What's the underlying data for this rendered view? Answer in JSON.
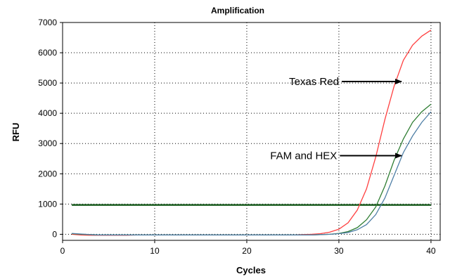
{
  "chart_data": {
    "type": "line",
    "title": "Amplification",
    "xlabel": "Cycles",
    "ylabel": "RFU",
    "xlim": [
      0,
      41
    ],
    "ylim": [
      -200,
      7000
    ],
    "xticks": [
      0,
      10,
      20,
      30,
      40
    ],
    "yticks": [
      0,
      1000,
      2000,
      3000,
      4000,
      5000,
      6000,
      7000
    ],
    "grid": true,
    "colors": {
      "red": "#ff4040",
      "green": "#2e7d32",
      "blue": "#4f7fa6",
      "threshold": "#1b5e20"
    },
    "threshold": 970,
    "series": [
      {
        "color": "red",
        "x": [
          1,
          2,
          3,
          4,
          5,
          6,
          7,
          8,
          9,
          10,
          11,
          12,
          13,
          14,
          15,
          16,
          17,
          18,
          19,
          20,
          21,
          22,
          23,
          24,
          25,
          26,
          27,
          28,
          29,
          30,
          31,
          32,
          33,
          34,
          35,
          36,
          37,
          38,
          39,
          40
        ],
        "values": [
          0,
          -20,
          -30,
          -30,
          -30,
          -30,
          -30,
          -20,
          -20,
          -20,
          -20,
          -20,
          -20,
          -20,
          -20,
          -20,
          -20,
          -20,
          -20,
          -20,
          -20,
          -20,
          -20,
          -20,
          -20,
          -10,
          0,
          20,
          70,
          170,
          380,
          800,
          1500,
          2550,
          3800,
          4900,
          5750,
          6250,
          6550,
          6750
        ]
      },
      {
        "color": "green",
        "x": [
          1,
          2,
          3,
          4,
          5,
          6,
          7,
          8,
          9,
          10,
          11,
          12,
          13,
          14,
          15,
          16,
          17,
          18,
          19,
          20,
          21,
          22,
          23,
          24,
          25,
          26,
          27,
          28,
          29,
          30,
          31,
          32,
          33,
          34,
          35,
          36,
          37,
          38,
          39,
          40
        ],
        "values": [
          20,
          0,
          -10,
          -20,
          -20,
          -20,
          -20,
          -20,
          -20,
          -20,
          -20,
          -20,
          -20,
          -20,
          -20,
          -20,
          -20,
          -20,
          -20,
          -20,
          -20,
          -20,
          -20,
          -20,
          -20,
          -20,
          -20,
          -10,
          0,
          30,
          90,
          220,
          480,
          900,
          1600,
          2450,
          3150,
          3700,
          4050,
          4300
        ]
      },
      {
        "color": "blue",
        "x": [
          1,
          2,
          3,
          4,
          5,
          6,
          7,
          8,
          9,
          10,
          11,
          12,
          13,
          14,
          15,
          16,
          17,
          18,
          19,
          20,
          21,
          22,
          23,
          24,
          25,
          26,
          27,
          28,
          29,
          30,
          31,
          32,
          33,
          34,
          35,
          36,
          37,
          38,
          39,
          40
        ],
        "values": [
          30,
          10,
          -10,
          -20,
          -20,
          -20,
          -20,
          -20,
          -20,
          -20,
          -20,
          -20,
          -20,
          -20,
          -20,
          -20,
          -20,
          -20,
          -20,
          -20,
          -20,
          -20,
          -20,
          -20,
          -20,
          -20,
          -20,
          -10,
          0,
          20,
          60,
          150,
          320,
          650,
          1200,
          1950,
          2700,
          3250,
          3700,
          4050
        ]
      }
    ],
    "annotations": [
      {
        "text": "Texas Red",
        "arrow_to": [
          36.8,
          5050
        ]
      },
      {
        "text": "FAM and HEX",
        "arrow_to": [
          36.8,
          2600
        ]
      }
    ]
  }
}
